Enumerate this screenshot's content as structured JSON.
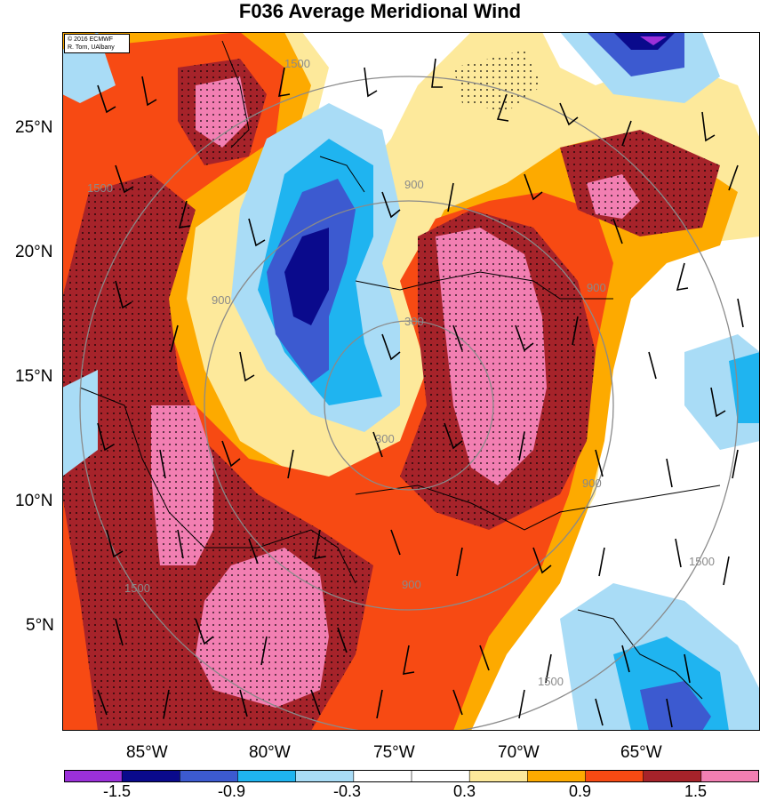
{
  "title": "F036 Average Meridional Wind",
  "credit": {
    "line1": "© 2016 ECMWF",
    "line2": "R. Torn, UAlbany"
  },
  "lat_labels": [
    "25°N",
    "20°N",
    "15°N",
    "10°N",
    "5°N"
  ],
  "lon_labels": [
    "85°W",
    "80°W",
    "75°W",
    "70°W",
    "65°W"
  ],
  "contour_labels": [
    "300",
    "300",
    "900",
    "900",
    "900",
    "900",
    "900",
    "1500",
    "1500",
    "1500",
    "1500",
    "1500"
  ],
  "colorbar": {
    "colors": [
      "#9b30d9",
      "#0a0a8c",
      "#3c5ad0",
      "#1fb4f0",
      "#a9dcf6",
      "#ffffff",
      "#ffffff",
      "#fde99b",
      "#fdaa00",
      "#f74a13",
      "#a6232a",
      "#f27fb2"
    ],
    "labels": [
      "-1.5",
      "-0.9",
      "-0.3",
      "0.3",
      "0.9",
      "1.5"
    ]
  }
}
